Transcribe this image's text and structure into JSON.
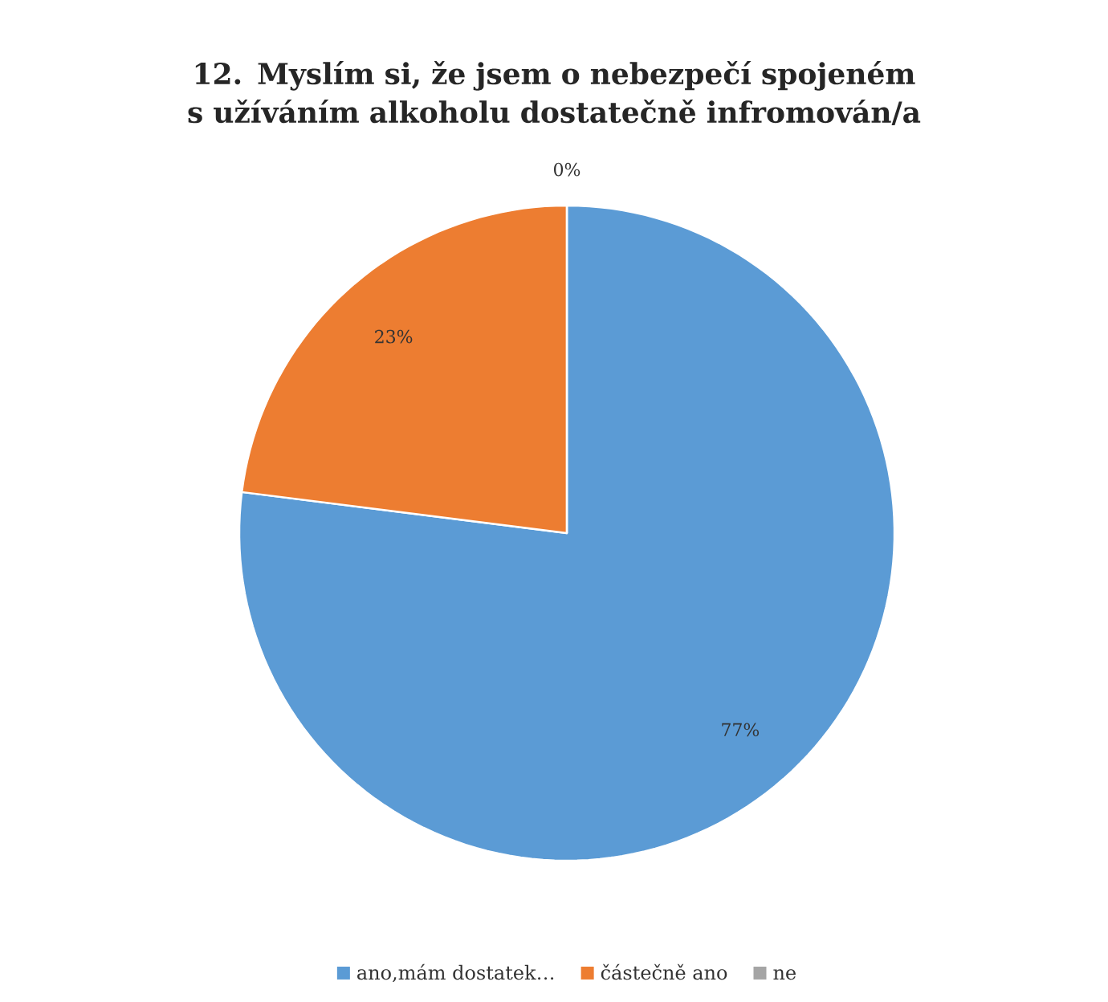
{
  "chart_data": {
    "type": "pie",
    "title": "12. Myslím si, že jsem o nebezpečí spojeném s užíváním alkoholu dostatečně infromován/a",
    "categories": [
      "ano,mám dostatek…",
      "částečně ano",
      "ne"
    ],
    "values": [
      77,
      23,
      0
    ],
    "colors": [
      "#5b9bd5",
      "#ed7d31",
      "#a5a5a5"
    ],
    "value_labels": [
      "77%",
      "23%",
      "0%"
    ],
    "legend": "bottom"
  }
}
